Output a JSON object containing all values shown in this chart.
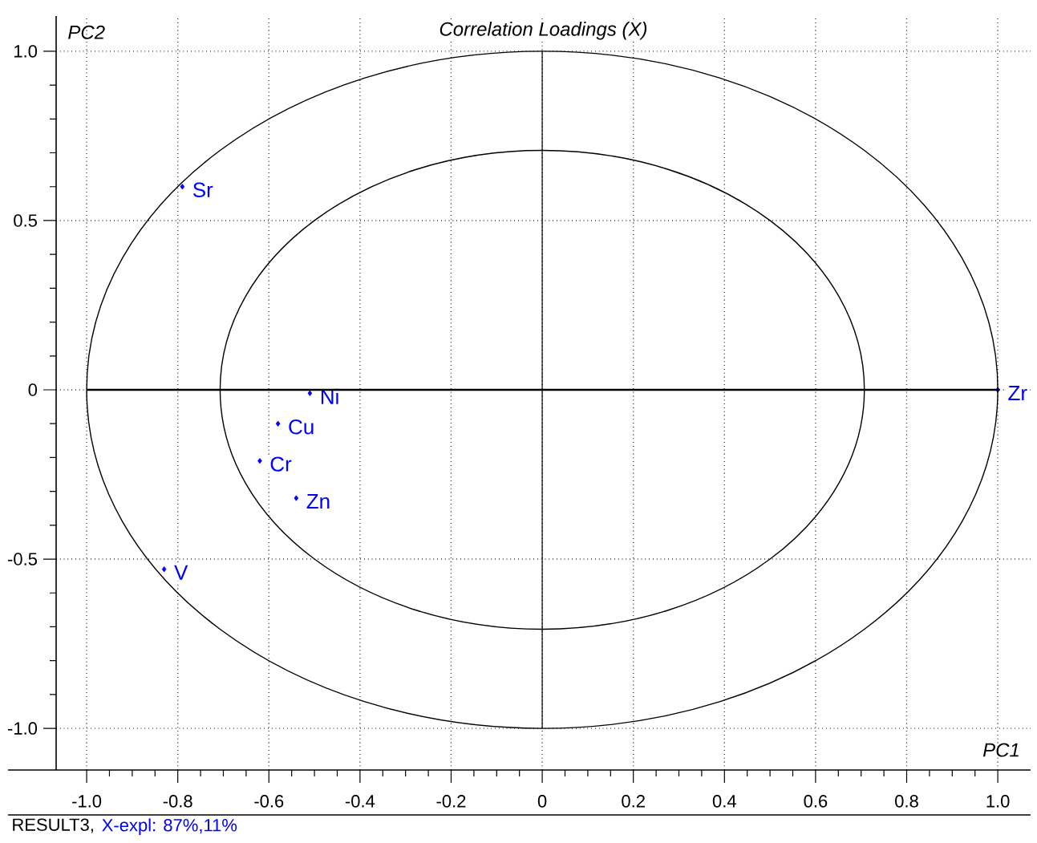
{
  "chart_data": {
    "type": "scatter",
    "title": "Correlation Loadings (X)",
    "xlabel": "PC1",
    "ylabel": "PC2",
    "annotations": [
      "RESULT3,",
      "X-expl: 87%,11%"
    ],
    "xlim": [
      -1.067,
      1.072
    ],
    "ylim": [
      -1.123,
      1.104
    ],
    "xticks": [
      {
        "value": -1.0,
        "label": "-1.0"
      },
      {
        "value": -0.8,
        "label": "-0.8"
      },
      {
        "value": -0.6,
        "label": "-0.6"
      },
      {
        "value": -0.4,
        "label": "-0.4"
      },
      {
        "value": -0.2,
        "label": "-0.2"
      },
      0,
      {
        "value": 0.2,
        "label": "0.2"
      },
      {
        "value": 0.4,
        "label": "0.4"
      },
      {
        "value": 0.6,
        "label": "0.6"
      },
      {
        "value": 0.8,
        "label": "0.8"
      },
      {
        "value": 1.0,
        "label": "1.0"
      }
    ],
    "yticks": [
      {
        "value": -1.0,
        "label": "-1.0"
      },
      {
        "value": -0.5,
        "label": "-0.5"
      },
      0,
      {
        "value": 0.5,
        "label": "0.5"
      },
      {
        "value": 1.0,
        "label": "1.0"
      }
    ],
    "grid": true,
    "marker": "diamond",
    "series": [
      {
        "name": "Sr",
        "color": "#0000ff",
        "x": [
          -0.79
        ],
        "values": [
          0.6
        ]
      },
      {
        "name": "Ni",
        "color": "#0000ff",
        "x": [
          -0.51
        ],
        "values": [
          -0.01
        ]
      },
      {
        "name": "Cu",
        "color": "#0000ff",
        "x": [
          -0.58
        ],
        "values": [
          -0.1
        ]
      },
      {
        "name": "Cr",
        "color": "#0000ff",
        "x": [
          -0.62
        ],
        "values": [
          -0.21
        ]
      },
      {
        "name": "Zn",
        "color": "#0000ff",
        "x": [
          -0.54
        ],
        "values": [
          -0.32
        ]
      },
      {
        "name": "V",
        "color": "#0000ff",
        "x": [
          -0.83
        ],
        "values": [
          -0.53
        ]
      },
      {
        "name": "Zr",
        "color": "#0000ff",
        "x": [
          1.0
        ],
        "values": [
          0.0
        ]
      }
    ]
  }
}
